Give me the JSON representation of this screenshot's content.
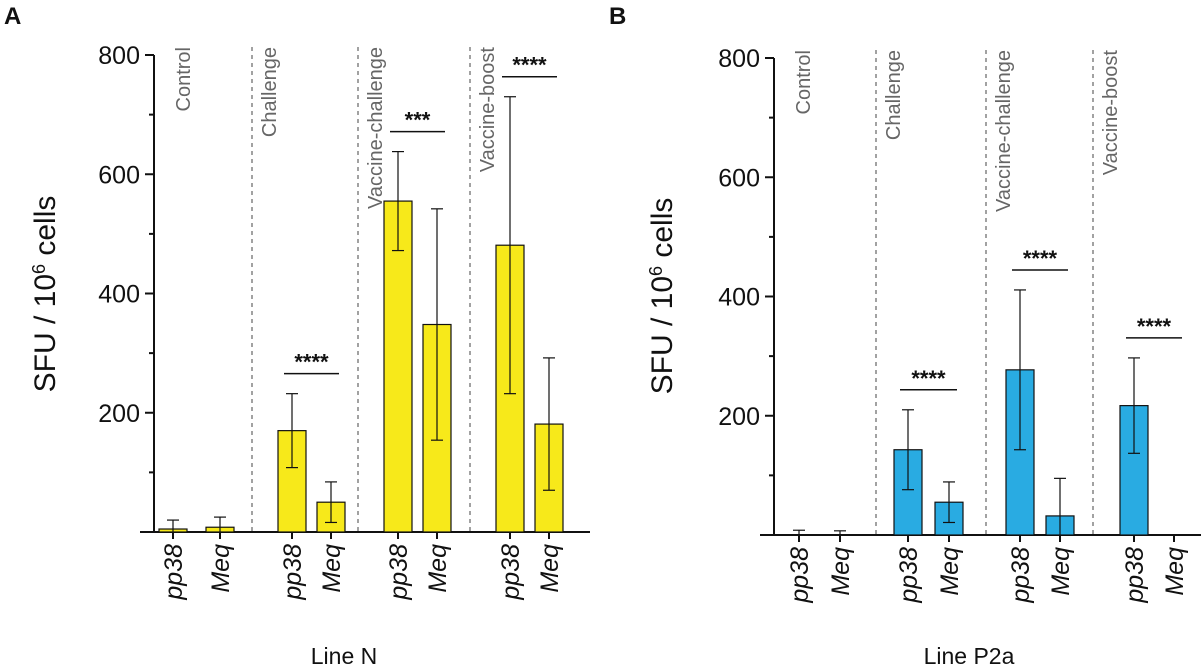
{
  "chart_data": [
    {
      "type": "bar",
      "panel": "A",
      "title": "Line N",
      "xlabel": "Line N",
      "ylabel": "SFU / 10⁶ cells",
      "ylabel_parts": {
        "pre": "SFU / 10",
        "sup": "6",
        "post": " cells"
      },
      "ylim": [
        0,
        800
      ],
      "yticks": [
        200,
        400,
        600,
        800
      ],
      "yticks_labels": [
        "200",
        "400",
        "600",
        "800"
      ],
      "bar_color": "#f7e91a",
      "groups": [
        {
          "label": "Control",
          "categories": [
            "pp38",
            "Meq"
          ],
          "values": [
            5,
            8
          ],
          "errors": [
            15,
            17
          ],
          "significance": ""
        },
        {
          "label": "Challenge",
          "categories": [
            "pp38",
            "Meq"
          ],
          "values": [
            170,
            50
          ],
          "errors": [
            62,
            34
          ],
          "significance": "****"
        },
        {
          "label": "Vaccine-challenge",
          "categories": [
            "pp38",
            "Meq"
          ],
          "values": [
            555,
            348
          ],
          "errors": [
            83,
            194
          ],
          "significance": "***"
        },
        {
          "label": "Vaccine-boost",
          "categories": [
            "pp38",
            "Meq"
          ],
          "values": [
            481,
            181
          ],
          "errors": [
            249,
            111
          ],
          "significance": "****"
        }
      ]
    },
    {
      "type": "bar",
      "panel": "B",
      "title": "Line P2a",
      "xlabel": "Line P2a",
      "ylabel": "SFU / 10⁶ cells",
      "ylabel_parts": {
        "pre": "SFU / 10",
        "sup": "6",
        "post": " cells"
      },
      "ylim": [
        0,
        800
      ],
      "yticks": [
        200,
        400,
        600,
        800
      ],
      "yticks_labels": [
        "200",
        "400",
        "600",
        "800"
      ],
      "bar_color": "#29abe2",
      "groups": [
        {
          "label": "Control",
          "categories": [
            "pp38",
            "Meq"
          ],
          "values": [
            0,
            0
          ],
          "errors": [
            8,
            7
          ],
          "significance": ""
        },
        {
          "label": "Challenge",
          "categories": [
            "pp38",
            "Meq"
          ],
          "values": [
            143,
            55
          ],
          "errors": [
            67,
            34
          ],
          "significance": "****"
        },
        {
          "label": "Vaccine-challenge",
          "categories": [
            "pp38",
            "Meq"
          ],
          "values": [
            277,
            32
          ],
          "errors": [
            134,
            63
          ],
          "significance": "****"
        },
        {
          "label": "Vaccine-boost",
          "categories": [
            "pp38",
            "Meq"
          ],
          "values": [
            217,
            0
          ],
          "errors": [
            80,
            0
          ],
          "significance": "****"
        }
      ]
    }
  ]
}
